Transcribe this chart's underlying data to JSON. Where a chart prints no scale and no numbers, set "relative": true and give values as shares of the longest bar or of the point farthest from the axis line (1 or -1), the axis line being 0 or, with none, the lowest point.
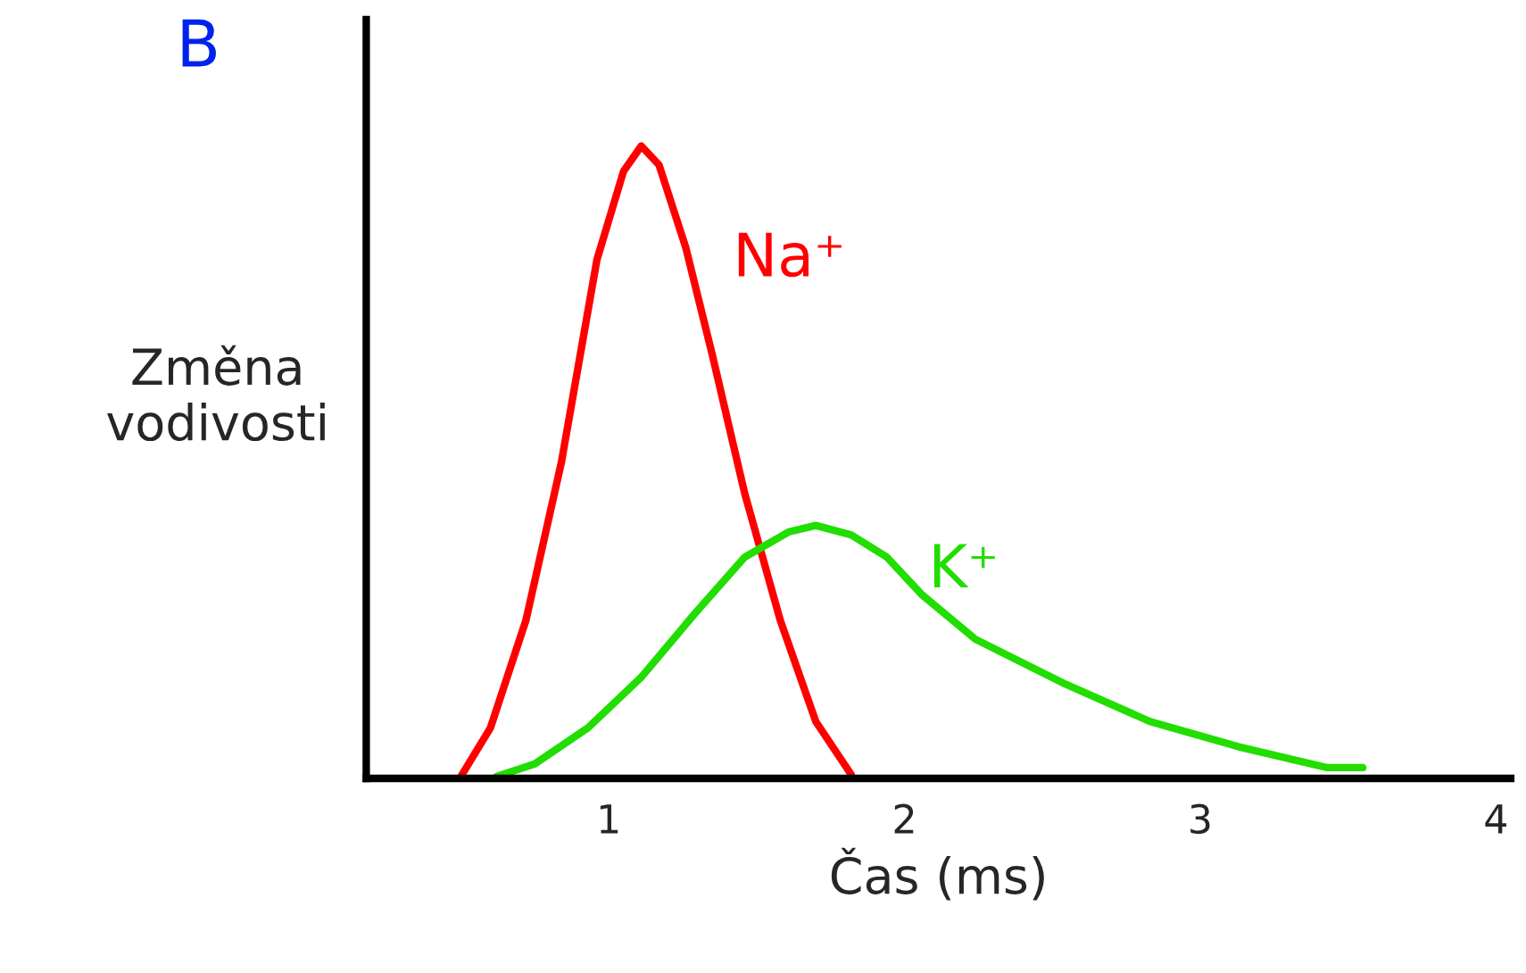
{
  "chart_data": {
    "type": "line",
    "title": "B",
    "xlabel": "Čas (ms)",
    "ylabel": "Změna\nvodivosti",
    "relative": true,
    "xlim": [
      0.18,
      4.05
    ],
    "xticks": [
      1,
      2,
      3,
      4
    ],
    "grid": false,
    "legend": false,
    "marker": "none",
    "line_style": "solid",
    "series": [
      {
        "name": "Na⁺",
        "color": "#ff0000",
        "x": [
          0.5,
          0.6,
          0.72,
          0.84,
          0.96,
          1.05,
          1.11,
          1.17,
          1.26,
          1.35,
          1.46,
          1.58,
          1.7,
          1.82
        ],
        "values": [
          0.003,
          0.08,
          0.25,
          0.5,
          0.82,
          0.96,
          1,
          0.97,
          0.84,
          0.67,
          0.45,
          0.25,
          0.09,
          0.006
        ]
      },
      {
        "name": "K⁺",
        "color": "#22dd00",
        "x": [
          0.62,
          0.75,
          0.93,
          1.11,
          1.29,
          1.46,
          1.61,
          1.7,
          1.82,
          1.94,
          2.06,
          2.24,
          2.54,
          2.83,
          3.13,
          3.43,
          3.55
        ],
        "values": [
          0.003,
          0.023,
          0.08,
          0.16,
          0.26,
          0.35,
          0.39,
          0.4,
          0.385,
          0.35,
          0.29,
          0.22,
          0.15,
          0.09,
          0.05,
          0.017,
          0.017
        ]
      }
    ]
  }
}
